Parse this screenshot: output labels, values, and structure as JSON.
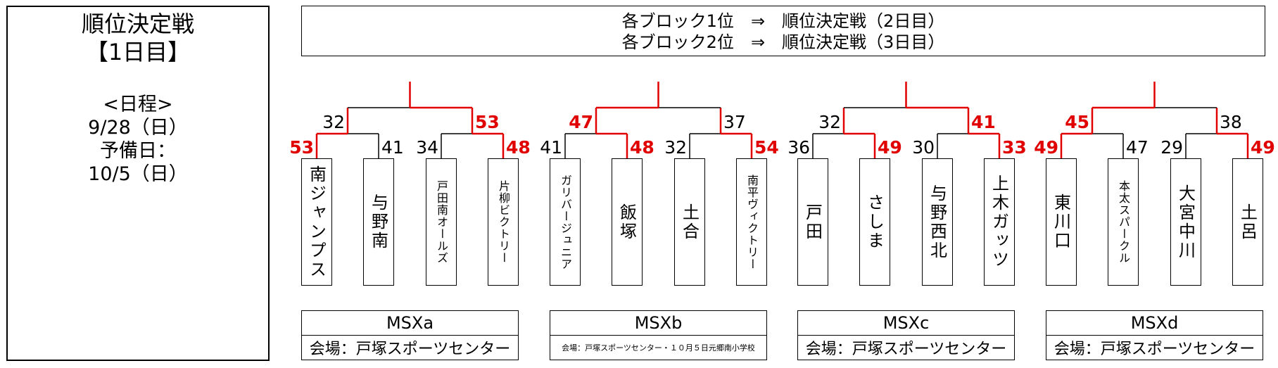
{
  "left_panel": {
    "title": "順位決定戦",
    "day": "【1日目】",
    "schedule_label": "<日程>",
    "date": "9/28（日）",
    "reserve_label": "予備日：",
    "reserve_date": "10/5（日）"
  },
  "header": {
    "line1": "各ブロック1位　⇒　順位決定戦（2日目）",
    "line2": "各ブロック2位　⇒　順位決定戦（3日目）"
  },
  "colors": {
    "win": "#e00000",
    "line": "#000000"
  },
  "blocks": [
    {
      "name": "MSXa",
      "venue": "会場：戸塚スポーツセンター",
      "teams": [
        "南ジャンプス",
        "与野南",
        "戸田南オールズ",
        "片柳ビクトリー"
      ],
      "semi_scores": [
        "53",
        "41",
        "34",
        "48"
      ],
      "final_scores": [
        "32",
        "53"
      ]
    },
    {
      "name": "MSXb",
      "venue": "会場：戸塚スポーツセンター・１０月５日元郷南小学校",
      "teams": [
        "ガリバージュニア",
        "飯塚",
        "土合",
        "南平ヴィクトリー"
      ],
      "semi_scores": [
        "41",
        "48",
        "32",
        "54"
      ],
      "final_scores": [
        "47",
        "37"
      ]
    },
    {
      "name": "MSXc",
      "venue": "会場：戸塚スポーツセンター",
      "teams": [
        "戸田",
        "さしま",
        "与野西北",
        "上木ガッツ"
      ],
      "semi_scores": [
        "36",
        "49",
        "30",
        "33"
      ],
      "final_scores": [
        "32",
        "41"
      ]
    },
    {
      "name": "MSXd",
      "venue": "会場：戸塚スポーツセンター",
      "teams": [
        "東川口",
        "本太スパークル",
        "大宮中川",
        "土呂"
      ],
      "semi_scores": [
        "49",
        "47",
        "29",
        "49"
      ],
      "final_scores": [
        "45",
        "38"
      ]
    }
  ]
}
